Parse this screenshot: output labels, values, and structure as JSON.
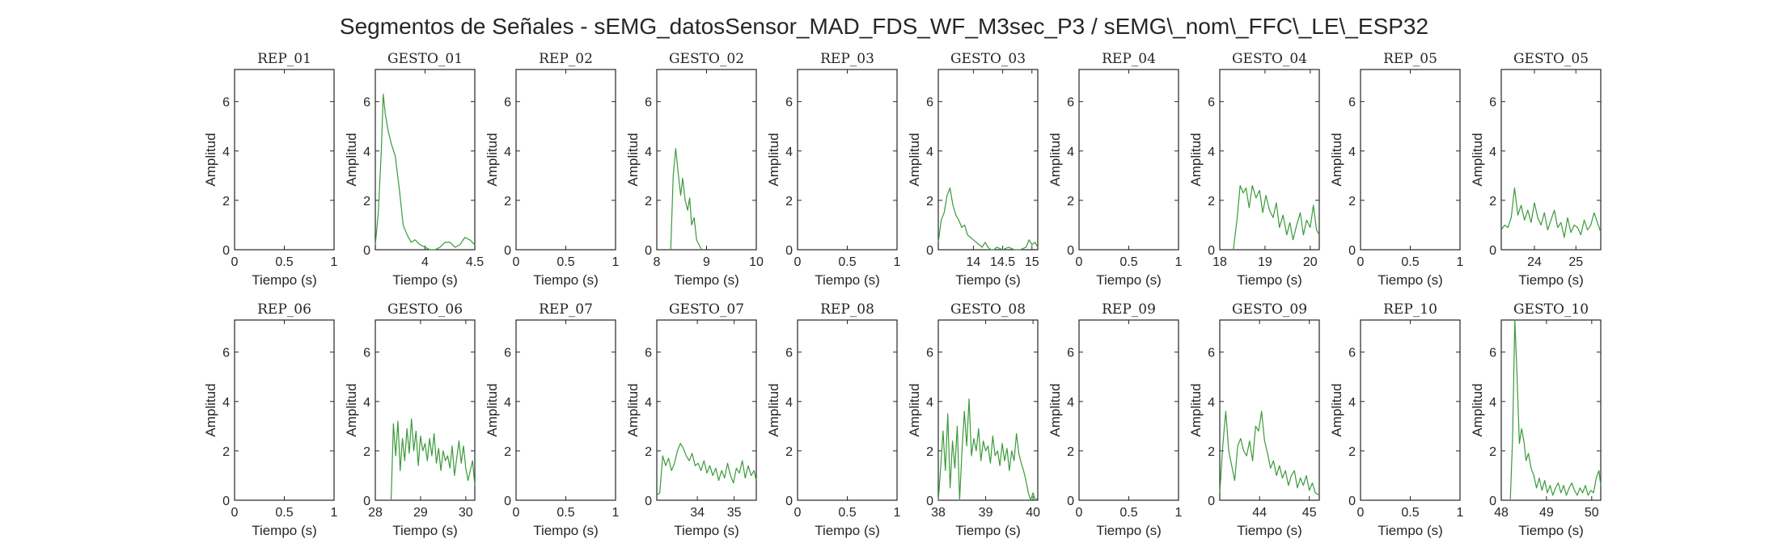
{
  "figure": {
    "title": "Segmentos de Señales - sEMG_datosSensor_MAD_FDS_WF_M3sec_P3 / sEMG\\_nom\\_FFC\\_LE\\_ESP32",
    "line_color": "#3a9a3a"
  },
  "chart_data": [
    {
      "type": "line",
      "title": "REP_01",
      "xlabel": "Tiempo (s)",
      "ylabel": "Amplitud",
      "xlim": [
        0,
        1
      ],
      "ylim": [
        0,
        7.3
      ],
      "xticks": [
        {
          "v": 0,
          "label": "0"
        },
        {
          "v": 0.5,
          "label": "0.5"
        },
        {
          "v": 1,
          "label": "1"
        }
      ],
      "yticks": [
        0,
        2,
        4,
        6
      ],
      "x": [],
      "y": []
    },
    {
      "type": "line",
      "title": "GESTO_01",
      "xlabel": "Tiempo (s)",
      "ylabel": "Amplitud",
      "xlim": [
        3.5,
        4.5
      ],
      "ylim": [
        0,
        7.3
      ],
      "xticks": [
        {
          "v": 4,
          "label": "4"
        },
        {
          "v": 4.5,
          "label": "4.5"
        }
      ],
      "yticks": [
        0,
        2,
        4,
        6
      ],
      "x": [
        3.5,
        3.53,
        3.56,
        3.58,
        3.6,
        3.63,
        3.66,
        3.7,
        3.74,
        3.78,
        3.82,
        3.86,
        3.9,
        3.95,
        4.0,
        4.05,
        4.1,
        4.15,
        4.2,
        4.25,
        4.3,
        4.35,
        4.4,
        4.45,
        4.5
      ],
      "y": [
        0.2,
        1.5,
        4.0,
        6.3,
        5.5,
        4.8,
        4.3,
        3.8,
        2.5,
        1.0,
        0.6,
        0.3,
        0.4,
        0.2,
        0.1,
        0.0,
        0.0,
        0.1,
        0.3,
        0.3,
        0.1,
        0.2,
        0.5,
        0.4,
        0.2
      ]
    },
    {
      "type": "line",
      "title": "REP_02",
      "xlabel": "Tiempo (s)",
      "ylabel": "Amplitud",
      "xlim": [
        0,
        1
      ],
      "ylim": [
        0,
        7.3
      ],
      "xticks": [
        {
          "v": 0,
          "label": "0"
        },
        {
          "v": 0.5,
          "label": "0.5"
        },
        {
          "v": 1,
          "label": "1"
        }
      ],
      "yticks": [
        0,
        2,
        4,
        6
      ],
      "x": [],
      "y": []
    },
    {
      "type": "line",
      "title": "GESTO_02",
      "xlabel": "Tiempo (s)",
      "ylabel": "Amplitud",
      "xlim": [
        8,
        10
      ],
      "ylim": [
        0,
        7.3
      ],
      "xticks": [
        {
          "v": 8,
          "label": "8"
        },
        {
          "v": 9,
          "label": "9"
        },
        {
          "v": 10,
          "label": "10"
        }
      ],
      "yticks": [
        0,
        2,
        4,
        6
      ],
      "x": [
        8.28,
        8.33,
        8.38,
        8.43,
        8.48,
        8.52,
        8.57,
        8.62,
        8.66,
        8.7,
        8.75,
        8.8,
        8.85,
        8.9
      ],
      "y": [
        0.0,
        3.0,
        4.1,
        3.1,
        2.2,
        2.9,
        2.0,
        1.6,
        2.1,
        1.0,
        1.3,
        0.4,
        0.2,
        0.0
      ]
    },
    {
      "type": "line",
      "title": "REP_03",
      "xlabel": "Tiempo (s)",
      "ylabel": "Amplitud",
      "xlim": [
        0,
        1
      ],
      "ylim": [
        0,
        7.3
      ],
      "xticks": [
        {
          "v": 0,
          "label": "0"
        },
        {
          "v": 0.5,
          "label": "0.5"
        },
        {
          "v": 1,
          "label": "1"
        }
      ],
      "yticks": [
        0,
        2,
        4,
        6
      ],
      "x": [],
      "y": []
    },
    {
      "type": "line",
      "title": "GESTO_03",
      "xlabel": "Tiempo (s)",
      "ylabel": "Amplitud",
      "xlim": [
        13.4,
        15.1
      ],
      "ylim": [
        0,
        7.3
      ],
      "xticks": [
        {
          "v": 14,
          "label": "14"
        },
        {
          "v": 14.5,
          "label": "14.5"
        },
        {
          "v": 15,
          "label": "15"
        }
      ],
      "yticks": [
        0,
        2,
        4,
        6
      ],
      "x": [
        13.4,
        13.45,
        13.5,
        13.55,
        13.6,
        13.65,
        13.7,
        13.75,
        13.8,
        13.85,
        13.9,
        13.95,
        14.0,
        14.05,
        14.1,
        14.15,
        14.2,
        14.25,
        14.3,
        14.35,
        14.4,
        14.5,
        14.6,
        14.7,
        14.8,
        14.9,
        14.95,
        15.0,
        15.05,
        15.1
      ],
      "y": [
        0.3,
        1.2,
        1.5,
        2.2,
        2.5,
        1.8,
        1.4,
        1.2,
        0.9,
        1.0,
        0.6,
        0.5,
        0.4,
        0.3,
        0.2,
        0.1,
        0.3,
        0.1,
        0.0,
        0.0,
        0.1,
        0.0,
        0.1,
        0.0,
        0.0,
        0.1,
        0.4,
        0.2,
        0.3,
        0.1
      ]
    },
    {
      "type": "line",
      "title": "REP_04",
      "xlabel": "Tiempo (s)",
      "ylabel": "Amplitud",
      "xlim": [
        0,
        1
      ],
      "ylim": [
        0,
        7.3
      ],
      "xticks": [
        {
          "v": 0,
          "label": "0"
        },
        {
          "v": 0.5,
          "label": "0.5"
        },
        {
          "v": 1,
          "label": "1"
        }
      ],
      "yticks": [
        0,
        2,
        4,
        6
      ],
      "x": [],
      "y": []
    },
    {
      "type": "line",
      "title": "GESTO_04",
      "xlabel": "Tiempo (s)",
      "ylabel": "Amplitud",
      "xlim": [
        18,
        20.2
      ],
      "ylim": [
        0,
        7.3
      ],
      "xticks": [
        {
          "v": 18,
          "label": "18"
        },
        {
          "v": 19,
          "label": "19"
        },
        {
          "v": 20,
          "label": "20"
        }
      ],
      "yticks": [
        0,
        2,
        4,
        6
      ],
      "x": [
        18.3,
        18.38,
        18.45,
        18.52,
        18.58,
        18.65,
        18.72,
        18.8,
        18.88,
        18.95,
        19.02,
        19.1,
        19.18,
        19.25,
        19.32,
        19.4,
        19.48,
        19.55,
        19.62,
        19.7,
        19.78,
        19.85,
        19.92,
        20.0,
        20.07,
        20.14,
        20.2
      ],
      "y": [
        0.0,
        1.2,
        2.6,
        2.3,
        2.5,
        1.7,
        2.6,
        2.1,
        2.4,
        1.5,
        2.2,
        1.6,
        1.3,
        1.9,
        0.9,
        1.4,
        0.6,
        1.1,
        0.4,
        1.0,
        1.5,
        0.6,
        1.2,
        0.9,
        1.8,
        0.8,
        0.6
      ]
    },
    {
      "type": "line",
      "title": "REP_05",
      "xlabel": "Tiempo (s)",
      "ylabel": "Amplitud",
      "xlim": [
        0,
        1
      ],
      "ylim": [
        0,
        7.3
      ],
      "xticks": [
        {
          "v": 0,
          "label": "0"
        },
        {
          "v": 0.5,
          "label": "0.5"
        },
        {
          "v": 1,
          "label": "1"
        }
      ],
      "yticks": [
        0,
        2,
        4,
        6
      ],
      "x": [],
      "y": []
    },
    {
      "type": "line",
      "title": "GESTO_05",
      "xlabel": "Tiempo (s)",
      "ylabel": "Amplitud",
      "xlim": [
        23.2,
        25.6
      ],
      "ylim": [
        0,
        7.3
      ],
      "xticks": [
        {
          "v": 24,
          "label": "24"
        },
        {
          "v": 25,
          "label": "25"
        }
      ],
      "yticks": [
        0,
        2,
        4,
        6
      ],
      "x": [
        23.2,
        23.28,
        23.36,
        23.44,
        23.52,
        23.6,
        23.68,
        23.76,
        23.84,
        23.92,
        24.0,
        24.08,
        24.16,
        24.24,
        24.32,
        24.4,
        24.48,
        24.56,
        24.64,
        24.72,
        24.8,
        24.88,
        24.96,
        25.04,
        25.12,
        25.2,
        25.28,
        25.36,
        25.44,
        25.52,
        25.6
      ],
      "y": [
        0.8,
        1.0,
        0.9,
        1.3,
        2.5,
        1.4,
        1.8,
        1.2,
        1.6,
        1.1,
        1.9,
        1.3,
        1.0,
        1.5,
        0.8,
        1.2,
        1.6,
        0.9,
        1.1,
        0.5,
        1.3,
        0.7,
        1.0,
        0.9,
        0.6,
        1.2,
        0.8,
        1.0,
        1.5,
        1.1,
        0.7
      ]
    },
    {
      "type": "line",
      "title": "REP_06",
      "xlabel": "Tiempo (s)",
      "ylabel": "Amplitud",
      "xlim": [
        0,
        1
      ],
      "ylim": [
        0,
        7.3
      ],
      "xticks": [
        {
          "v": 0,
          "label": "0"
        },
        {
          "v": 0.5,
          "label": "0.5"
        },
        {
          "v": 1,
          "label": "1"
        }
      ],
      "yticks": [
        0,
        2,
        4,
        6
      ],
      "x": [],
      "y": []
    },
    {
      "type": "line",
      "title": "GESTO_06",
      "xlabel": "Tiempo (s)",
      "ylabel": "Amplitud",
      "xlim": [
        28,
        30.2
      ],
      "ylim": [
        0,
        7.3
      ],
      "xticks": [
        {
          "v": 28,
          "label": "28"
        },
        {
          "v": 29,
          "label": "29"
        },
        {
          "v": 30,
          "label": "30"
        }
      ],
      "yticks": [
        0,
        2,
        4,
        6
      ],
      "x": [
        28.35,
        28.4,
        28.45,
        28.5,
        28.55,
        28.6,
        28.65,
        28.7,
        28.75,
        28.8,
        28.85,
        28.9,
        28.95,
        29.0,
        29.05,
        29.1,
        29.15,
        29.2,
        29.25,
        29.3,
        29.35,
        29.4,
        29.45,
        29.5,
        29.55,
        29.6,
        29.65,
        29.7,
        29.75,
        29.8,
        29.85,
        29.9,
        29.95,
        30.0,
        30.05,
        30.1,
        30.15,
        30.2
      ],
      "y": [
        0.0,
        3.1,
        1.8,
        3.2,
        1.2,
        2.5,
        1.6,
        2.9,
        1.9,
        3.3,
        2.0,
        2.8,
        1.4,
        2.6,
        2.0,
        2.3,
        1.6,
        2.5,
        1.8,
        2.7,
        1.5,
        2.1,
        1.2,
        2.0,
        1.6,
        1.8,
        1.3,
        2.2,
        1.0,
        1.7,
        2.4,
        1.5,
        2.2,
        1.3,
        0.8,
        1.2,
        1.6,
        0.6
      ]
    },
    {
      "type": "line",
      "title": "REP_07",
      "xlabel": "Tiempo (s)",
      "ylabel": "Amplitud",
      "xlim": [
        0,
        1
      ],
      "ylim": [
        0,
        7.3
      ],
      "xticks": [
        {
          "v": 0,
          "label": "0"
        },
        {
          "v": 0.5,
          "label": "0.5"
        },
        {
          "v": 1,
          "label": "1"
        }
      ],
      "yticks": [
        0,
        2,
        4,
        6
      ],
      "x": [],
      "y": []
    },
    {
      "type": "line",
      "title": "GESTO_07",
      "xlabel": "Tiempo (s)",
      "ylabel": "Amplitud",
      "xlim": [
        32.9,
        35.6
      ],
      "ylim": [
        0,
        7.3
      ],
      "xticks": [
        {
          "v": 34,
          "label": "34"
        },
        {
          "v": 35,
          "label": "35"
        }
      ],
      "yticks": [
        0,
        2,
        4,
        6
      ],
      "x": [
        32.9,
        32.98,
        33.06,
        33.14,
        33.22,
        33.3,
        33.38,
        33.46,
        33.54,
        33.62,
        33.7,
        33.78,
        33.86,
        33.94,
        34.02,
        34.1,
        34.18,
        34.26,
        34.34,
        34.42,
        34.5,
        34.58,
        34.66,
        34.74,
        34.82,
        34.9,
        34.98,
        35.06,
        35.14,
        35.22,
        35.3,
        35.38,
        35.46,
        35.54,
        35.6
      ],
      "y": [
        0.2,
        0.3,
        1.8,
        1.4,
        1.7,
        1.2,
        1.5,
        2.0,
        2.3,
        2.1,
        1.8,
        1.6,
        1.9,
        1.4,
        1.5,
        1.2,
        1.6,
        1.1,
        1.4,
        1.0,
        1.3,
        0.8,
        1.2,
        0.9,
        1.5,
        1.0,
        0.7,
        1.3,
        1.1,
        1.6,
        0.9,
        1.4,
        1.0,
        1.2,
        0.8
      ]
    },
    {
      "type": "line",
      "title": "REP_08",
      "xlabel": "Tiempo (s)",
      "ylabel": "Amplitud",
      "xlim": [
        0,
        1
      ],
      "ylim": [
        0,
        7.3
      ],
      "xticks": [
        {
          "v": 0,
          "label": "0"
        },
        {
          "v": 0.5,
          "label": "0.5"
        },
        {
          "v": 1,
          "label": "1"
        }
      ],
      "yticks": [
        0,
        2,
        4,
        6
      ],
      "x": [],
      "y": []
    },
    {
      "type": "line",
      "title": "GESTO_08",
      "xlabel": "Tiempo (s)",
      "ylabel": "Amplitud",
      "xlim": [
        38,
        40.1
      ],
      "ylim": [
        0,
        7.3
      ],
      "xticks": [
        {
          "v": 38,
          "label": "38"
        },
        {
          "v": 39,
          "label": "39"
        },
        {
          "v": 40,
          "label": "40"
        }
      ],
      "yticks": [
        0,
        2,
        4,
        6
      ],
      "x": [
        38.0,
        38.05,
        38.1,
        38.15,
        38.2,
        38.25,
        38.3,
        38.35,
        38.4,
        38.45,
        38.5,
        38.55,
        38.6,
        38.65,
        38.7,
        38.75,
        38.8,
        38.85,
        38.9,
        38.95,
        39.0,
        39.05,
        39.1,
        39.15,
        39.2,
        39.25,
        39.3,
        39.35,
        39.4,
        39.45,
        39.5,
        39.55,
        39.6,
        39.65,
        39.7,
        39.75,
        39.8,
        39.85,
        39.9,
        39.95,
        40.0,
        40.05,
        40.1
      ],
      "y": [
        0.0,
        1.3,
        2.8,
        1.2,
        3.5,
        0.5,
        2.4,
        1.3,
        3.0,
        0.0,
        2.0,
        3.6,
        2.2,
        4.1,
        1.8,
        2.5,
        2.0,
        2.9,
        1.6,
        2.4,
        2.0,
        2.2,
        1.5,
        2.6,
        1.8,
        2.0,
        1.4,
        2.3,
        1.6,
        2.1,
        1.2,
        2.0,
        1.6,
        2.7,
        1.9,
        1.5,
        1.2,
        0.8,
        0.3,
        0.0,
        0.3,
        0.0,
        0.1
      ]
    },
    {
      "type": "line",
      "title": "REP_09",
      "xlabel": "Tiempo (s)",
      "ylabel": "Amplitud",
      "xlim": [
        0,
        1
      ],
      "ylim": [
        0,
        7.3
      ],
      "xticks": [
        {
          "v": 0,
          "label": "0"
        },
        {
          "v": 0.5,
          "label": "0.5"
        },
        {
          "v": 1,
          "label": "1"
        }
      ],
      "yticks": [
        0,
        2,
        4,
        6
      ],
      "x": [],
      "y": []
    },
    {
      "type": "line",
      "title": "GESTO_09",
      "xlabel": "Tiempo (s)",
      "ylabel": "Amplitud",
      "xlim": [
        43.2,
        45.2
      ],
      "ylim": [
        0,
        7.3
      ],
      "xticks": [
        {
          "v": 44,
          "label": "44"
        },
        {
          "v": 45,
          "label": "45"
        }
      ],
      "yticks": [
        0,
        2,
        4,
        6
      ],
      "x": [
        43.2,
        43.26,
        43.32,
        43.38,
        43.44,
        43.5,
        43.56,
        43.62,
        43.68,
        43.74,
        43.8,
        43.86,
        43.92,
        43.98,
        44.04,
        44.1,
        44.16,
        44.22,
        44.28,
        44.34,
        44.4,
        44.46,
        44.52,
        44.58,
        44.64,
        44.7,
        44.76,
        44.82,
        44.88,
        44.94,
        45.0,
        45.06,
        45.12,
        45.2
      ],
      "y": [
        0.3,
        2.2,
        3.6,
        2.0,
        1.4,
        0.8,
        2.2,
        2.5,
        2.0,
        1.8,
        2.4,
        1.6,
        3.0,
        2.8,
        3.6,
        2.4,
        1.9,
        1.3,
        1.6,
        1.0,
        1.4,
        0.9,
        1.2,
        0.6,
        1.0,
        1.2,
        0.5,
        0.9,
        0.6,
        1.0,
        0.4,
        0.7,
        0.3,
        0.2
      ]
    },
    {
      "type": "line",
      "title": "REP_10",
      "xlabel": "Tiempo (s)",
      "ylabel": "Amplitud",
      "xlim": [
        0,
        1
      ],
      "ylim": [
        0,
        7.3
      ],
      "xticks": [
        {
          "v": 0,
          "label": "0"
        },
        {
          "v": 0.5,
          "label": "0.5"
        },
        {
          "v": 1,
          "label": "1"
        }
      ],
      "yticks": [
        0,
        2,
        4,
        6
      ],
      "x": [],
      "y": []
    },
    {
      "type": "line",
      "title": "GESTO_10",
      "xlabel": "Tiempo (s)",
      "ylabel": "Amplitud",
      "xlim": [
        48,
        50.2
      ],
      "ylim": [
        0,
        7.3
      ],
      "xticks": [
        {
          "v": 48,
          "label": "48"
        },
        {
          "v": 49,
          "label": "49"
        },
        {
          "v": 50,
          "label": "50"
        }
      ],
      "yticks": [
        0,
        2,
        4,
        6
      ],
      "x": [
        48.2,
        48.25,
        48.3,
        48.35,
        48.4,
        48.45,
        48.5,
        48.55,
        48.6,
        48.66,
        48.72,
        48.78,
        48.84,
        48.9,
        48.96,
        49.02,
        49.08,
        49.14,
        49.2,
        49.26,
        49.32,
        49.38,
        49.44,
        49.5,
        49.56,
        49.62,
        49.68,
        49.74,
        49.8,
        49.86,
        49.92,
        49.98,
        50.04,
        50.1,
        50.16,
        50.2
      ],
      "y": [
        0.0,
        2.5,
        7.3,
        5.0,
        2.3,
        2.9,
        2.4,
        1.6,
        1.9,
        1.3,
        1.0,
        0.5,
        0.9,
        0.4,
        0.8,
        0.3,
        0.6,
        0.2,
        0.5,
        0.7,
        0.3,
        0.6,
        0.2,
        0.5,
        0.7,
        0.4,
        0.2,
        0.5,
        0.3,
        0.6,
        0.2,
        0.4,
        0.3,
        0.9,
        1.2,
        0.6
      ]
    }
  ]
}
